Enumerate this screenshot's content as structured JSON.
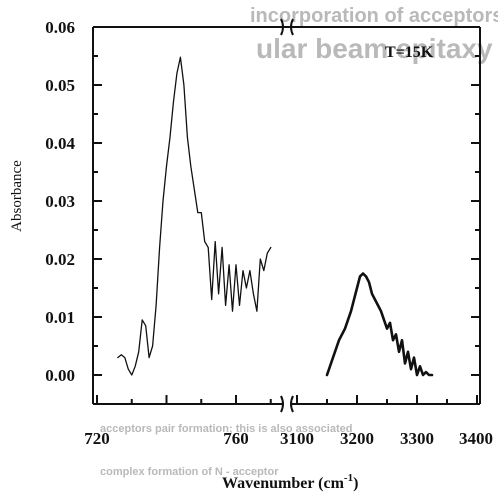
{
  "chart_data": {
    "type": "line",
    "xlabel": "Wavenumber (cm",
    "xlabel_sup": "-1",
    "xlabel_close": ")",
    "ylabel": "Absorbance",
    "ylim": [
      0.0,
      0.06
    ],
    "y_ticks": [
      "0.00",
      "0.01",
      "0.02",
      "0.03",
      "0.04",
      "0.05",
      "0.06"
    ],
    "x_ticks_left": [
      "720",
      "760"
    ],
    "x_ticks_right": [
      "3100",
      "3200",
      "3300",
      "3400"
    ],
    "xlim_left": [
      720,
      770
    ],
    "xlim_right": [
      3100,
      3400
    ],
    "annotation": "T=15K",
    "bleed_through_text": [
      "ular beam epitaxy",
      "incorporation of acceptors and",
      "acceptors pair formation; this is also associated",
      "complex formation of N - acceptor"
    ],
    "series": [
      {
        "panel": "left",
        "x": [
          726,
          727,
          728,
          729,
          730,
          731,
          732,
          733,
          734,
          735,
          736,
          737,
          738,
          739,
          740,
          741,
          742,
          743,
          744,
          745,
          746,
          747,
          748,
          749,
          750,
          751,
          752,
          753,
          754,
          755,
          756,
          757,
          758,
          759,
          760,
          761,
          762,
          763,
          764,
          765,
          766,
          767,
          768,
          769,
          770
        ],
        "y": [
          0.003,
          0.0035,
          0.003,
          0.001,
          0.0,
          0.0015,
          0.004,
          0.0095,
          0.0085,
          0.003,
          0.005,
          0.012,
          0.022,
          0.03,
          0.036,
          0.041,
          0.047,
          0.052,
          0.0548,
          0.05,
          0.041,
          0.036,
          0.032,
          0.028,
          0.028,
          0.023,
          0.022,
          0.013,
          0.023,
          0.014,
          0.022,
          0.012,
          0.019,
          0.011,
          0.019,
          0.012,
          0.018,
          0.015,
          0.018,
          0.014,
          0.011,
          0.02,
          0.018,
          0.021,
          0.022
        ]
      },
      {
        "panel": "right",
        "x": [
          3150,
          3160,
          3170,
          3180,
          3190,
          3195,
          3200,
          3205,
          3210,
          3215,
          3220,
          3225,
          3230,
          3240,
          3250,
          3255,
          3260,
          3265,
          3270,
          3275,
          3280,
          3285,
          3290,
          3295,
          3300,
          3305,
          3310,
          3315,
          3320,
          3325
        ],
        "y": [
          0.0,
          0.003,
          0.006,
          0.008,
          0.011,
          0.013,
          0.015,
          0.017,
          0.0175,
          0.017,
          0.016,
          0.014,
          0.013,
          0.011,
          0.008,
          0.009,
          0.006,
          0.007,
          0.004,
          0.006,
          0.002,
          0.004,
          0.001,
          0.003,
          0.0,
          0.0015,
          0.0,
          0.0005,
          0.0,
          0.0
        ]
      }
    ],
    "grid": false
  }
}
